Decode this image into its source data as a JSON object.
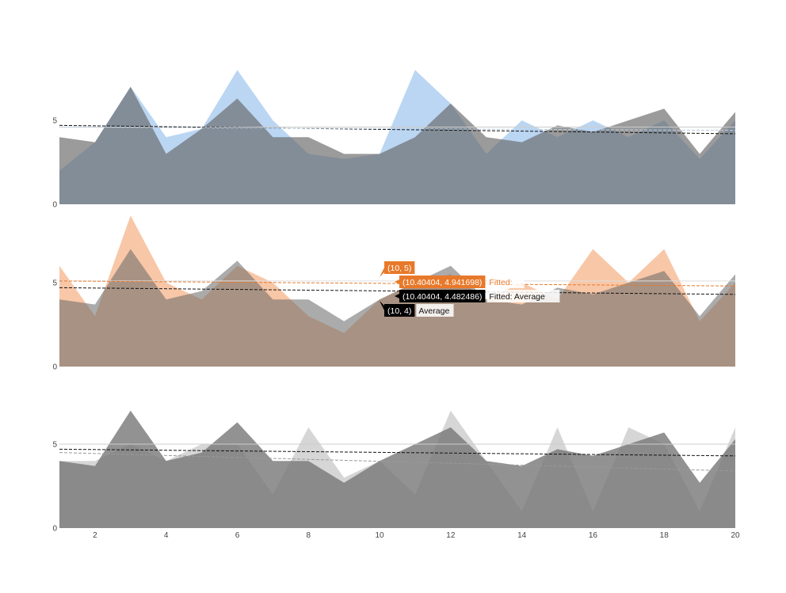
{
  "chart_data": [
    {
      "type": "area",
      "x": [
        1,
        2,
        3,
        4,
        5,
        6,
        7,
        8,
        9,
        10,
        11,
        12,
        13,
        14,
        15,
        16,
        17,
        18,
        19,
        20
      ],
      "ylim": [
        0,
        10
      ],
      "yticks": [
        0,
        5
      ],
      "series": [
        {
          "values": [
            2,
            3.7,
            7,
            4,
            4.5,
            8,
            5,
            3,
            2.7,
            3,
            8,
            6,
            3,
            5,
            4,
            5,
            4,
            5,
            2.7,
            5
          ],
          "color": "#a4c8ee",
          "opacity": 0.75
        },
        {
          "values": [
            4,
            3.7,
            7,
            3,
            4.5,
            6.3,
            4,
            4,
            3,
            3,
            4,
            6,
            4,
            3.7,
            4.7,
            4.3,
            5,
            5.7,
            3,
            5.5
          ],
          "color": "#666666",
          "opacity": 0.65
        }
      ],
      "reference_lines": [
        {
          "value": 4.6,
          "color": "#cccccc",
          "dash": ""
        },
        {
          "from": 4.7,
          "to": 4.2,
          "color": "#111111",
          "dash": "4,2"
        },
        {
          "from": 4.6,
          "to": 4.4,
          "color": "#b8cde2",
          "dash": "4,2"
        }
      ],
      "show_x_labels": false
    },
    {
      "type": "area",
      "x": [
        1,
        2,
        3,
        4,
        5,
        6,
        7,
        8,
        9,
        10,
        11,
        12,
        13,
        14,
        15,
        16,
        17,
        18,
        19,
        20
      ],
      "ylim": [
        0,
        10
      ],
      "yticks": [
        0,
        5
      ],
      "series": [
        {
          "values": [
            6,
            3,
            9,
            5,
            4,
            6,
            5,
            3,
            2,
            4,
            5,
            5.5,
            4,
            5,
            4,
            7,
            5,
            7,
            2.7,
            5
          ],
          "color": "#f6b48a",
          "opacity": 0.75
        },
        {
          "values": [
            4,
            3.7,
            7,
            4,
            4.5,
            6.3,
            4,
            4,
            2.7,
            4,
            5,
            6,
            4,
            3.7,
            4.7,
            4.3,
            5,
            5.7,
            3,
            5.5
          ],
          "color": "#666666",
          "opacity": 0.55
        }
      ],
      "reference_lines": [
        {
          "value": 5.1,
          "color": "#dddddd",
          "dash": ""
        },
        {
          "from": 5.1,
          "to": 4.8,
          "color": "#e8792a",
          "dash": "4,2"
        },
        {
          "from": 4.7,
          "to": 4.3,
          "color": "#111111",
          "dash": "4,2"
        }
      ],
      "tooltips": [
        {
          "value_label": "(10, 5)",
          "name": "",
          "bg": "#e8792a",
          "fg": "#ffffff"
        },
        {
          "value_label": "(10.40404, 4.941698)",
          "name": "Fitted:",
          "bg": "#e8792a",
          "fg": "#ffffff",
          "name_color": "#e8792a"
        },
        {
          "value_label": "(10.40404, 4.482486)",
          "name": "Fitted: Average",
          "bg": "#000000",
          "fg": "#ffffff",
          "name_color": "#111111"
        },
        {
          "value_label": "(10, 4)",
          "name": "Average",
          "bg": "#000000",
          "fg": "#ffffff",
          "name_color": "#111111"
        }
      ],
      "show_x_labels": false
    },
    {
      "type": "area",
      "x": [
        1,
        2,
        3,
        4,
        5,
        6,
        7,
        8,
        9,
        10,
        11,
        12,
        13,
        14,
        15,
        16,
        17,
        18,
        19,
        20
      ],
      "ylim": [
        0,
        10
      ],
      "yticks": [
        0,
        5
      ],
      "series": [
        {
          "values": [
            4,
            4,
            5,
            4,
            5,
            5,
            2,
            6,
            3,
            4,
            2,
            7,
            4,
            1,
            6,
            1,
            6,
            5,
            1,
            6
          ],
          "color": "#bbbbbb",
          "opacity": 0.6
        },
        {
          "values": [
            4,
            3.7,
            7,
            4,
            4.5,
            6.3,
            4,
            4,
            2.7,
            4,
            5,
            6,
            4,
            3.7,
            4.7,
            4.3,
            5,
            5.7,
            2.7,
            5.3
          ],
          "color": "#777777",
          "opacity": 0.8
        }
      ],
      "reference_lines": [
        {
          "value": 5.0,
          "color": "#cccccc",
          "dash": ""
        },
        {
          "from": 4.7,
          "to": 4.3,
          "color": "#111111",
          "dash": "4,2"
        },
        {
          "from": 4.5,
          "to": 3.4,
          "color": "#999999",
          "dash": "4,2"
        }
      ],
      "show_x_labels": true,
      "xticks": [
        2,
        4,
        6,
        8,
        10,
        12,
        14,
        16,
        18,
        20
      ]
    }
  ]
}
